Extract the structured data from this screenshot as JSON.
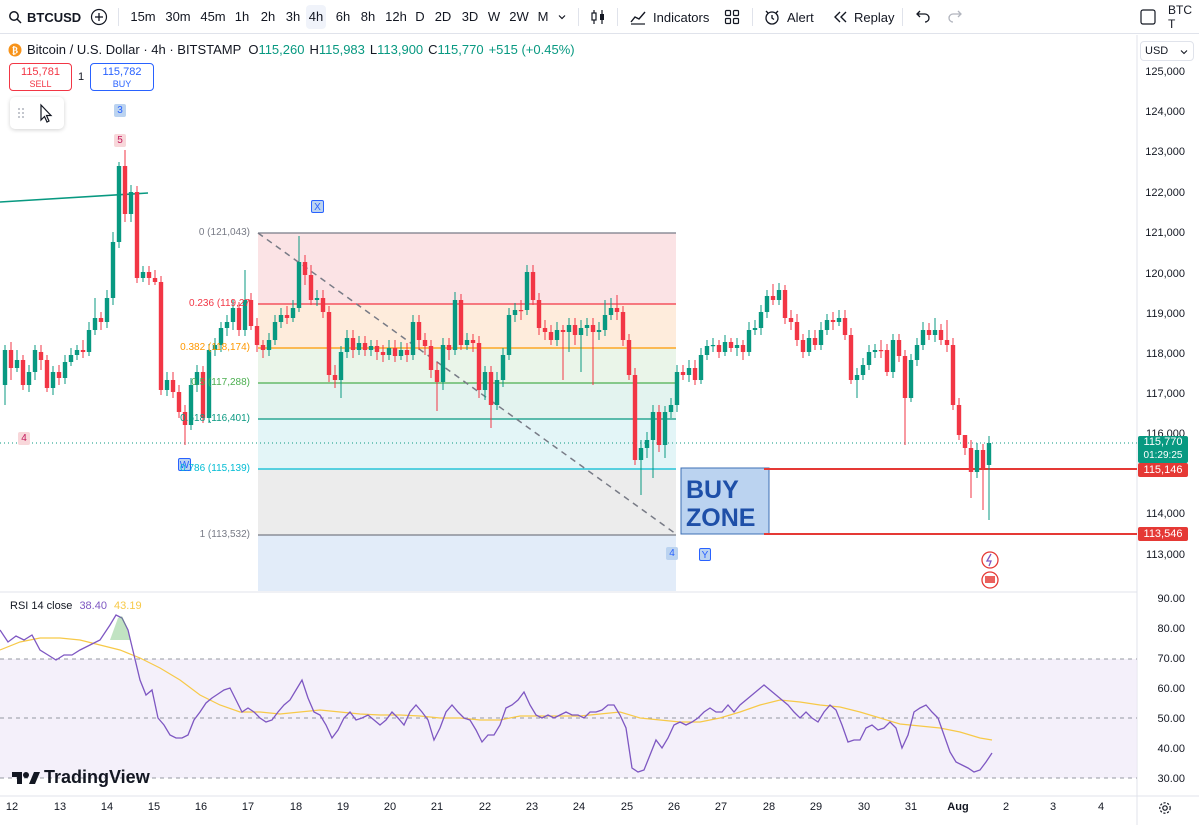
{
  "toolbar": {
    "symbol": "BTCUSD",
    "timeframes": [
      "15m",
      "30m",
      "45m",
      "1h",
      "2h",
      "3h",
      "4h",
      "6h",
      "8h",
      "12h",
      "D",
      "2D",
      "3D",
      "W",
      "2W",
      "M"
    ],
    "active_timeframe": "4h",
    "indicators_label": "Indicators",
    "alert_label": "Alert",
    "replay_label": "Replay",
    "right_symbol": "BTC T"
  },
  "legend": {
    "title": "Bitcoin / U.S. Dollar · 4h · BITSTAMP",
    "o_label": "O",
    "o_value": "115,260",
    "h_label": "H",
    "h_value": "115,983",
    "l_label": "L",
    "l_value": "113,900",
    "c_label": "C",
    "c_value": "115,770",
    "change": "+515 (+0.45%)"
  },
  "trade": {
    "sell_price": "115,781",
    "sell_label": "SELL",
    "qty": "1",
    "buy_price": "115,782",
    "buy_label": "BUY"
  },
  "currency": "USD",
  "price_axis": [
    "125,000",
    "124,000",
    "123,000",
    "122,000",
    "121,000",
    "120,000",
    "119,000",
    "118,000",
    "117,000",
    "116,000",
    "114,000",
    "113,000"
  ],
  "price_tags": {
    "current": "115,770",
    "countdown": "01:29:25",
    "buy_zone_top": "115,146",
    "buy_zone_bottom": "113,546"
  },
  "fib_levels": [
    {
      "label": "0 (121,043)",
      "color": "#787b86"
    },
    {
      "label": "0.236 (119,27",
      "color": "#f23645"
    },
    {
      "label": "0.382 (118,174)",
      "color": "#ff9800"
    },
    {
      "label": "0.5 (117,288)",
      "color": "#4caf50"
    },
    {
      "label": "0.618 (116,401)",
      "color": "#089981"
    },
    {
      "label": "0.786 (115,139)",
      "color": "#00bcd4"
    },
    {
      "label": "1 (113,532)",
      "color": "#787b86"
    }
  ],
  "wave_labels": {
    "w3": "3",
    "w5": "5",
    "w4a": "4",
    "wW": "W",
    "wX": "X",
    "w4b": "4",
    "wY": "Y"
  },
  "buy_zone": {
    "line1": "BUY",
    "line2": "ZONE"
  },
  "rsi": {
    "name": "RSI 14 close",
    "value": "38.40",
    "ma_value": "43.19",
    "axis": [
      "90.00",
      "80.00",
      "70.00",
      "60.00",
      "50.00",
      "40.00",
      "30.00"
    ]
  },
  "time_axis": [
    "12",
    "13",
    "14",
    "15",
    "16",
    "17",
    "18",
    "19",
    "20",
    "21",
    "22",
    "23",
    "24",
    "25",
    "26",
    "27",
    "28",
    "29",
    "30",
    "31",
    "Aug",
    "2",
    "3",
    "4"
  ],
  "watermark": "TradingView",
  "colors": {
    "up": "#089981",
    "down": "#f23645",
    "rsi": "#7e57c2",
    "rsi_ma": "#f7c948",
    "buy_zone_fill": "#bbd3f0",
    "buy_zone_line": "#e53935"
  }
}
